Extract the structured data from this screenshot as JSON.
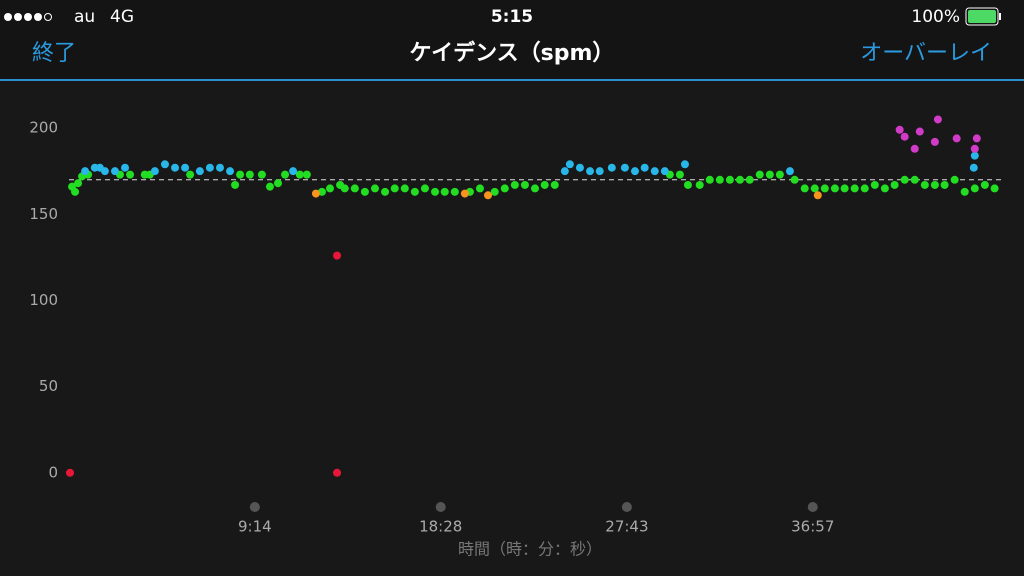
{
  "status_bar": {
    "carrier": "au",
    "network": "4G",
    "time": "5:15",
    "battery": "100%"
  },
  "nav": {
    "left": "終了",
    "title": "ケイデンス（spm）",
    "right": "オーバーレイ"
  },
  "chart_data": {
    "type": "scatter",
    "x_label": "時間（時：分：秒）",
    "xlim": [
      0,
      2790
    ],
    "ylim": [
      -10,
      225
    ],
    "xticks": [
      {
        "value": 554,
        "label": "9:14"
      },
      {
        "value": 1108,
        "label": "18:28"
      },
      {
        "value": 1663,
        "label": "27:43"
      },
      {
        "value": 2217,
        "label": "36:57"
      }
    ],
    "yticks": [
      0,
      50,
      100,
      150,
      200
    ],
    "average": 170,
    "series": [
      {
        "color": "#22dd22",
        "x": [
          9,
          18,
          27,
          39,
          57,
          152,
          182,
          226,
          241,
          361,
          495,
          510,
          539,
          575,
          599,
          623,
          644,
          688,
          709,
          754,
          778,
          808,
          822,
          852,
          882,
          912,
          942,
          971,
          1001,
          1031,
          1061,
          1091,
          1120,
          1150,
          1195,
          1225,
          1269,
          1299,
          1329,
          1359,
          1389,
          1418,
          1448,
          1791,
          1821,
          1845,
          1880,
          1910,
          1940,
          1970,
          2000,
          2029,
          2059,
          2089,
          2119,
          2163,
          2193,
          2223,
          2253,
          2283,
          2312,
          2342,
          2372,
          2402,
          2432,
          2461,
          2491,
          2521,
          2551,
          2581,
          2610,
          2640,
          2670,
          2700,
          2730,
          2759
        ],
        "values": [
          166,
          163,
          168,
          172,
          173,
          173,
          173,
          173,
          173,
          173,
          167,
          173,
          173,
          173,
          166,
          168,
          173,
          173,
          173,
          163,
          165,
          167,
          165,
          165,
          163,
          165,
          163,
          165,
          165,
          163,
          165,
          163,
          163,
          163,
          163,
          165,
          163,
          165,
          167,
          167,
          165,
          167,
          167,
          173,
          173,
          167,
          167,
          170,
          170,
          170,
          170,
          170,
          173,
          173,
          173,
          170,
          165,
          165,
          165,
          165,
          165,
          165,
          165,
          167,
          165,
          167,
          170,
          170,
          167,
          167,
          167,
          170,
          163,
          165,
          167,
          165
        ]
      },
      {
        "color": "#29b6e8",
        "x": [
          48,
          77,
          92,
          107,
          137,
          167,
          256,
          286,
          316,
          346,
          390,
          420,
          450,
          480,
          668,
          1478,
          1493,
          1523,
          1553,
          1582,
          1618,
          1657,
          1687,
          1716,
          1746,
          1776,
          1836,
          2149,
          2700,
          2697
        ],
        "values": [
          175,
          177,
          177,
          175,
          175,
          177,
          175,
          179,
          177,
          177,
          175,
          177,
          177,
          175,
          175,
          175,
          179,
          177,
          175,
          175,
          177,
          177,
          175,
          177,
          175,
          175,
          179,
          175,
          184,
          177
        ]
      },
      {
        "color": "#f7941d",
        "x": [
          736,
          1180,
          1249,
          2232
        ],
        "values": [
          162,
          162,
          161,
          161
        ]
      },
      {
        "color": "#e8173a",
        "x": [
          3,
          799,
          799
        ],
        "values": [
          0,
          0,
          126
        ]
      },
      {
        "color": "#d23bc8",
        "x": [
          2476,
          2491,
          2521,
          2536,
          2581,
          2590,
          2646,
          2706,
          2700
        ],
        "values": [
          199,
          195,
          188,
          198,
          192,
          205,
          194,
          194,
          188
        ]
      }
    ]
  }
}
